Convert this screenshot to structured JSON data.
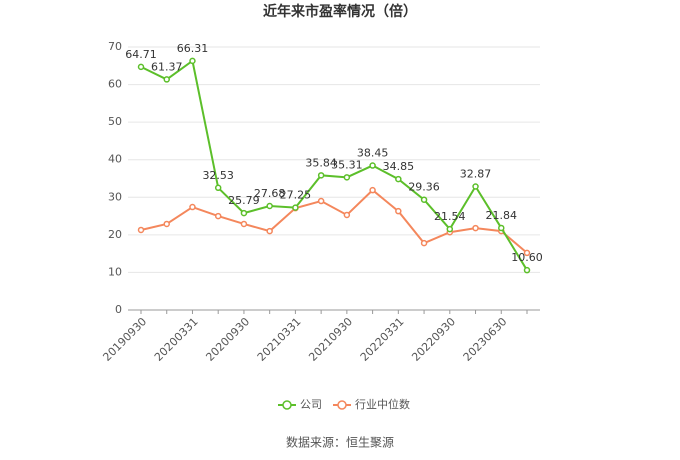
{
  "chart_data": {
    "type": "line",
    "title": "近年来市盈率情况（倍）",
    "source": "数据来源：恒生聚源",
    "categories": [
      "20190930",
      null,
      "20200331",
      null,
      "20200930",
      null,
      "20210331",
      null,
      "20210930",
      null,
      "20220331",
      null,
      "20220930",
      null,
      "20230630",
      null
    ],
    "series": [
      {
        "name": "公司",
        "color": "#5cbf2a",
        "values": [
          64.71,
          61.37,
          66.31,
          32.53,
          25.79,
          27.68,
          27.25,
          35.84,
          35.31,
          38.45,
          34.85,
          29.36,
          21.54,
          32.87,
          21.84,
          10.6
        ],
        "value_labels": [
          "64.71",
          "61.37",
          "66.31",
          "32.53",
          "25.79",
          "27.68",
          "27.25",
          "35.84",
          "35.31",
          "38.45",
          "34.85",
          "29.36",
          "21.54",
          "32.87",
          "21.84",
          "10.60"
        ]
      },
      {
        "name": "行业中位数",
        "color": "#f4875c",
        "values": [
          21.3,
          22.9,
          27.4,
          25,
          22.9,
          21,
          27.1,
          29,
          25.3,
          31.9,
          26.3,
          17.8,
          20.7,
          21.8,
          21,
          15.2
        ]
      }
    ],
    "ylim": [
      0,
      70
    ],
    "yticks": [
      0,
      10,
      20,
      30,
      40,
      50,
      60,
      70
    ],
    "grid": true
  }
}
